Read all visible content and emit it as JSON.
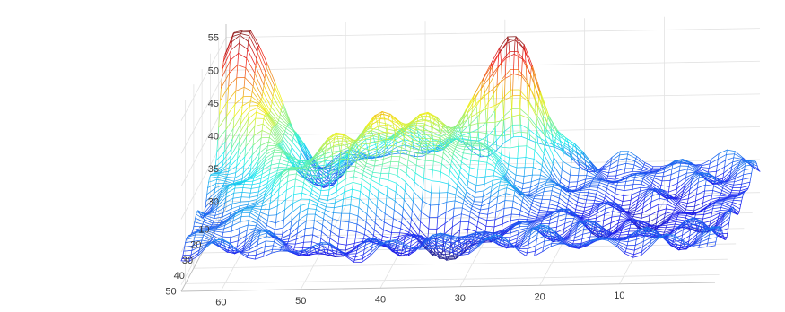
{
  "chart_data": {
    "type": "surface-mesh",
    "title": "",
    "xlabel": "",
    "ylabel": "",
    "zlabel": "",
    "colormap": "jet",
    "grid": true,
    "xlim": [
      0,
      65
    ],
    "ylim": [
      1,
      55
    ],
    "zlim": [
      29,
      57
    ],
    "x_ticks": [
      10,
      20,
      30,
      40,
      50,
      60
    ],
    "y_ticks": [
      10,
      20,
      30,
      40,
      50
    ],
    "z_ticks": [
      30,
      35,
      40,
      45,
      50,
      55
    ],
    "grid_size": {
      "nx": 66,
      "ny": 55
    },
    "peak_z": 56,
    "min_z": 30,
    "plateau_z": 35
  }
}
